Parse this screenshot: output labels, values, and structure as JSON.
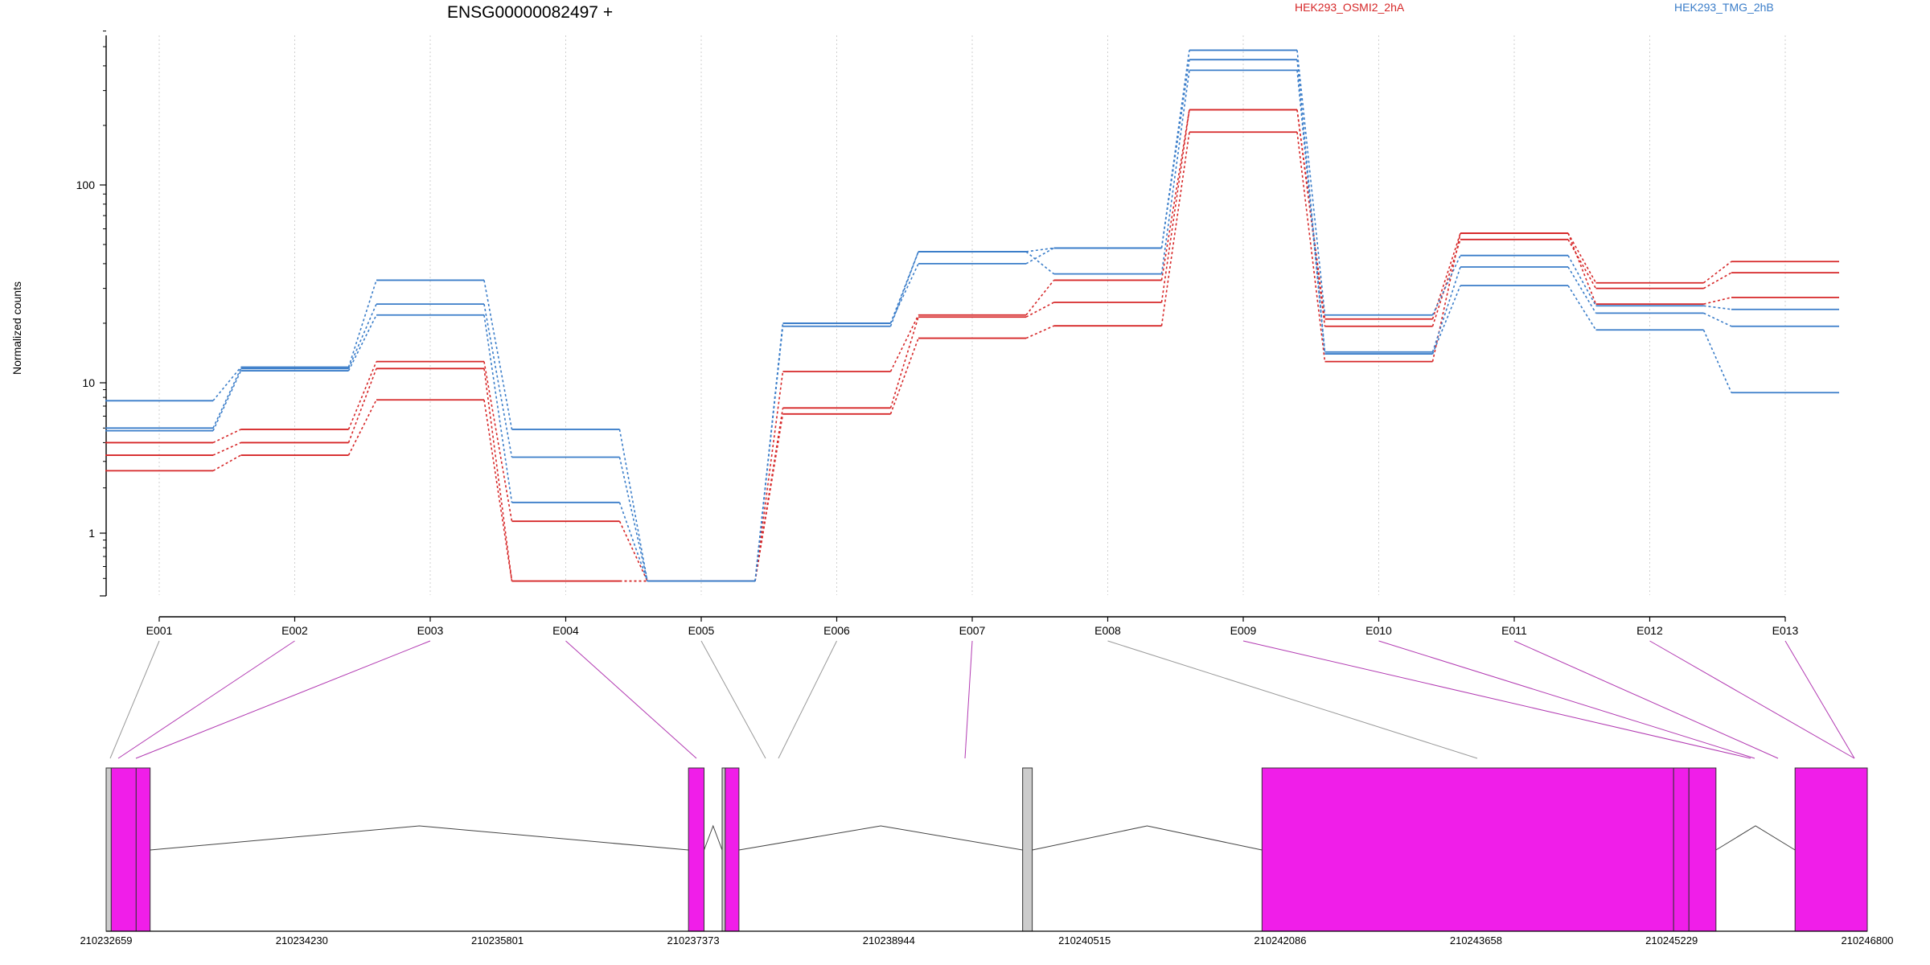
{
  "chart_data": {
    "type": "line",
    "title": "ENSG00000082497 +",
    "ylabel": "Normalized counts",
    "y_scale": "log",
    "ylim": [
      0.43,
      650
    ],
    "yticks": [
      1,
      10,
      100
    ],
    "grid": "vertical dotted lines at each exon",
    "categories": [
      "E001",
      "E002",
      "E003",
      "E004",
      "E005",
      "E006",
      "E007",
      "E008",
      "E009",
      "E010",
      "E011",
      "E012",
      "E013"
    ],
    "legend": [
      {
        "name": "HEK293_OSMI2_2hA",
        "color": "#d62728"
      },
      {
        "name": "HEK293_TMG_2hB",
        "color": "#3a7dc9"
      }
    ],
    "series": [
      {
        "group": "HEK293_OSMI2_2hA",
        "color": "#d62728",
        "values": [
          4.0,
          4.9,
          12.8,
          1.2,
          0.48,
          11.4,
          22.0,
          33.0,
          240,
          21.0,
          57,
          32,
          41
        ]
      },
      {
        "group": "HEK293_OSMI2_2hA",
        "color": "#d62728",
        "values": [
          3.3,
          4.0,
          11.8,
          0.48,
          0.48,
          6.8,
          21.5,
          25.5,
          240,
          19.3,
          53,
          30,
          36
        ]
      },
      {
        "group": "HEK293_OSMI2_2hA",
        "color": "#d62728",
        "values": [
          2.6,
          3.3,
          7.7,
          0.48,
          0.48,
          6.2,
          16.8,
          19.4,
          185,
          12.8,
          57,
          25,
          27
        ]
      },
      {
        "group": "HEK293_TMG_2hB",
        "color": "#3a7dc9",
        "values": [
          7.6,
          12.0,
          33.0,
          4.9,
          0.48,
          20.0,
          46,
          48,
          480,
          22.0,
          44,
          24.5,
          23.5
        ]
      },
      {
        "group": "HEK293_TMG_2hB",
        "color": "#3a7dc9",
        "values": [
          5.0,
          11.8,
          25.0,
          3.2,
          0.48,
          20.0,
          40,
          48,
          430,
          14.3,
          38.5,
          22.5,
          19.3
        ]
      },
      {
        "group": "HEK293_TMG_2hB",
        "color": "#3a7dc9",
        "values": [
          4.8,
          11.5,
          22.0,
          1.6,
          0.48,
          19.3,
          46,
          35.5,
          380,
          14.0,
          31,
          18.5,
          8.6
        ]
      }
    ],
    "gene_model": {
      "axis_ticks": [
        "210232659",
        "210234230",
        "210235801",
        "210237373",
        "210238944",
        "210240515",
        "210242086",
        "210243658",
        "210245229",
        "210246800"
      ],
      "exon_color_tested": "#f01ee9",
      "exon_color_untested": "#cccccc"
    }
  }
}
